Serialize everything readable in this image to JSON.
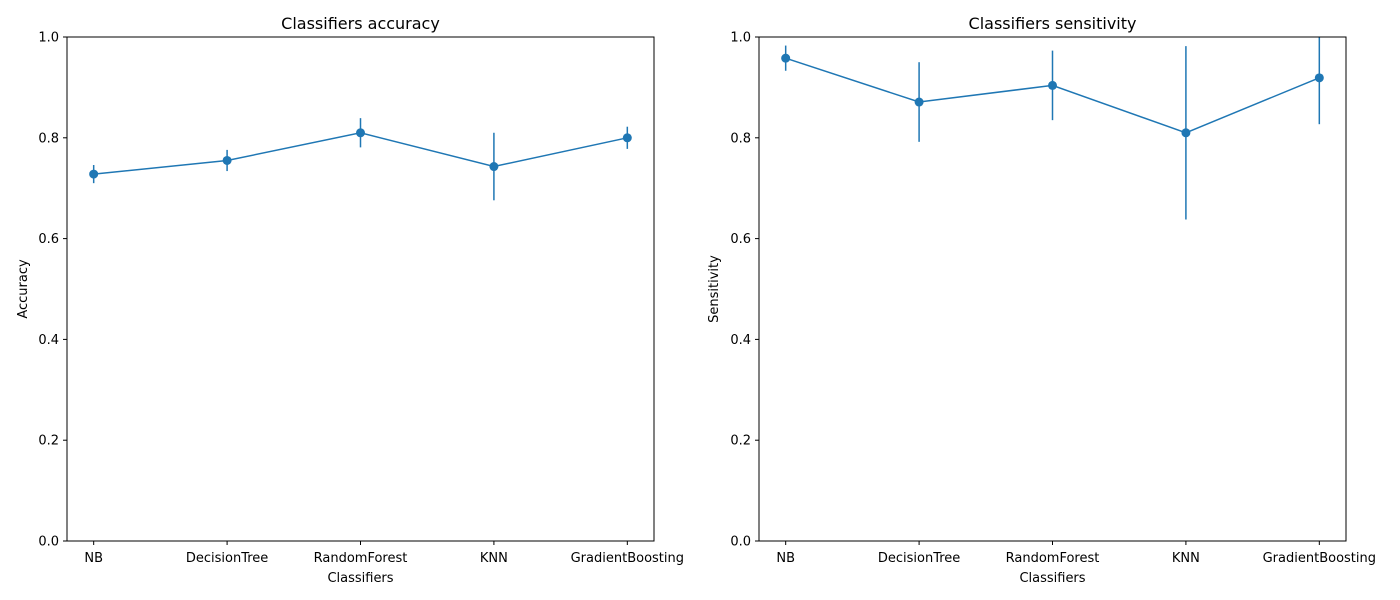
{
  "chart_data": [
    {
      "type": "line",
      "title": "Classifiers accuracy",
      "xlabel": "Classifiers",
      "ylabel": "Accuracy",
      "ylim": [
        0,
        1.0
      ],
      "yticks": [
        "0.0",
        "0.2",
        "0.4",
        "0.6",
        "0.8",
        "1.0"
      ],
      "grid": false,
      "color": "#1f77b4",
      "categories": [
        "NB",
        "DecisionTree",
        "RandomForest",
        "KNN",
        "GradientBoosting"
      ],
      "values": [
        0.728,
        0.755,
        0.81,
        0.743,
        0.8
      ],
      "err": [
        0.018,
        0.021,
        0.029,
        0.067,
        0.022
      ]
    },
    {
      "type": "line",
      "title": "Classifiers sensitivity",
      "xlabel": "Classifiers",
      "ylabel": "Sensitivity",
      "ylim": [
        0,
        1.0
      ],
      "yticks": [
        "0.0",
        "0.2",
        "0.4",
        "0.6",
        "0.8",
        "1.0"
      ],
      "grid": false,
      "color": "#1f77b4",
      "categories": [
        "NB",
        "DecisionTree",
        "RandomForest",
        "KNN",
        "GradientBoosting"
      ],
      "values": [
        0.958,
        0.871,
        0.904,
        0.81,
        0.919
      ],
      "err": [
        0.025,
        0.079,
        0.069,
        0.172,
        0.092
      ]
    }
  ]
}
